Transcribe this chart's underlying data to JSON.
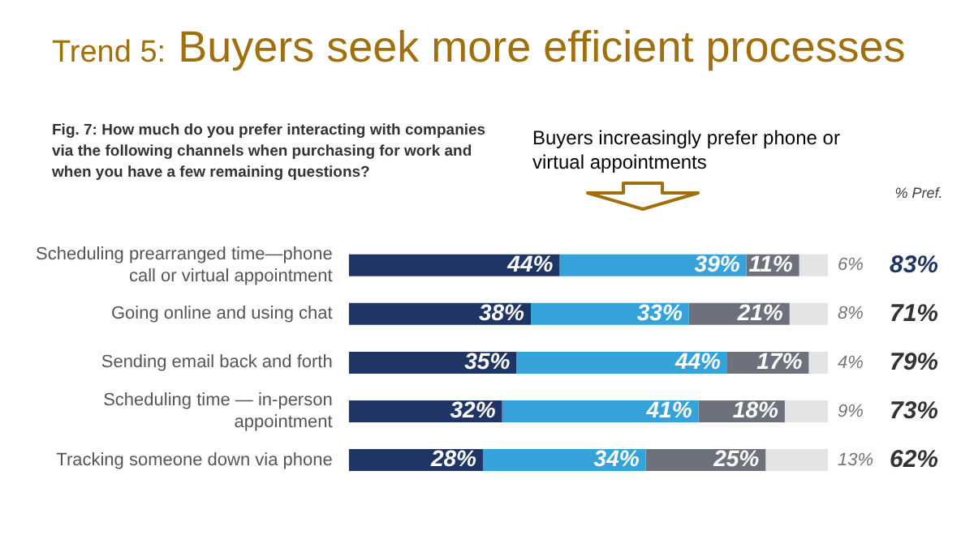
{
  "chart_data": {
    "type": "bar",
    "orientation": "horizontal",
    "stacked": true,
    "title": "Trend 5: Buyers seek more efficient processes",
    "subtitle": "Fig. 7: How much do you prefer interacting with companies via the following channels when purchasing for work and when you have a few remaining questions?",
    "categories": [
      "Scheduling prearranged time—phone call or virtual appointment",
      "Going online and using chat",
      "Sending email back and forth",
      "Scheduling time — in-person appointment",
      "Tracking someone down via phone"
    ],
    "series": [
      {
        "color": "#1f3566",
        "values": [
          44,
          38,
          35,
          32,
          28
        ],
        "value_labels": [
          "44%",
          "38%",
          "35%",
          "32%",
          "28%"
        ]
      },
      {
        "color": "#35a3d9",
        "values": [
          39,
          33,
          44,
          41,
          34
        ],
        "value_labels": [
          "39%",
          "33%",
          "44%",
          "41%",
          "34%"
        ]
      },
      {
        "color": "#6d717b",
        "values": [
          11,
          21,
          17,
          18,
          25
        ],
        "value_labels": [
          "11%",
          "21%",
          "17%",
          "18%",
          "25%"
        ]
      },
      {
        "color": "#e3e4e6",
        "values": [
          6,
          8,
          4,
          9,
          13
        ],
        "value_labels": [
          "6%",
          "8%",
          "4%",
          "9%",
          "13%"
        ]
      }
    ],
    "grid": false,
    "legend": false,
    "annotations": [
      "Buyers increasingly prefer phone or virtual appointments",
      "% Pref.",
      "83%",
      "71%",
      "79%",
      "73%",
      "62%"
    ]
  }
}
